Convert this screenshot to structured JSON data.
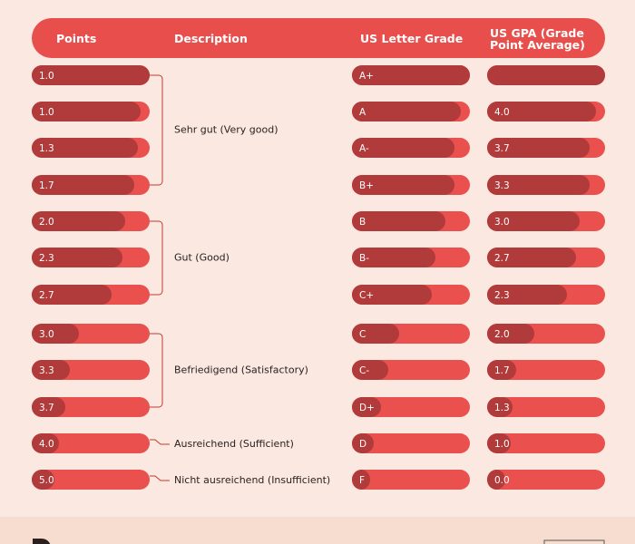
{
  "header": {
    "columns": [
      "Points",
      "Description",
      "US Letter Grade",
      "US GPA (Grade",
      "Point Average)"
    ]
  },
  "rows": [
    [
      "1.0",
      "A+",
      null
    ],
    [
      "1.0",
      "A",
      "4.0"
    ],
    [
      "1.3",
      "A-",
      "3.7"
    ],
    [
      "1.7",
      "B+",
      "3.3"
    ],
    [
      "2.0",
      "B",
      "3.0"
    ],
    [
      "2.3",
      "B-",
      "2.7"
    ],
    [
      "2.7",
      "C+",
      "2.3"
    ],
    [
      "3.0",
      "C",
      "2.0"
    ],
    [
      "3.3",
      "C-",
      "1.7"
    ],
    [
      "3.7",
      "D+",
      "1.3"
    ],
    [
      "4.0",
      "D",
      "1.0"
    ],
    [
      "5.0",
      "F",
      "0.0"
    ]
  ],
  "groups": [
    {
      "label": "Sehr gut (Very good)"
    },
    {
      "label": "Gut (Good)"
    },
    {
      "label": "Befriedigend (Satisfactory)"
    },
    {
      "label": "Ausreichend (Sufficient)"
    },
    {
      "label": "Nicht ausreichend (Insufficient)"
    }
  ]
}
